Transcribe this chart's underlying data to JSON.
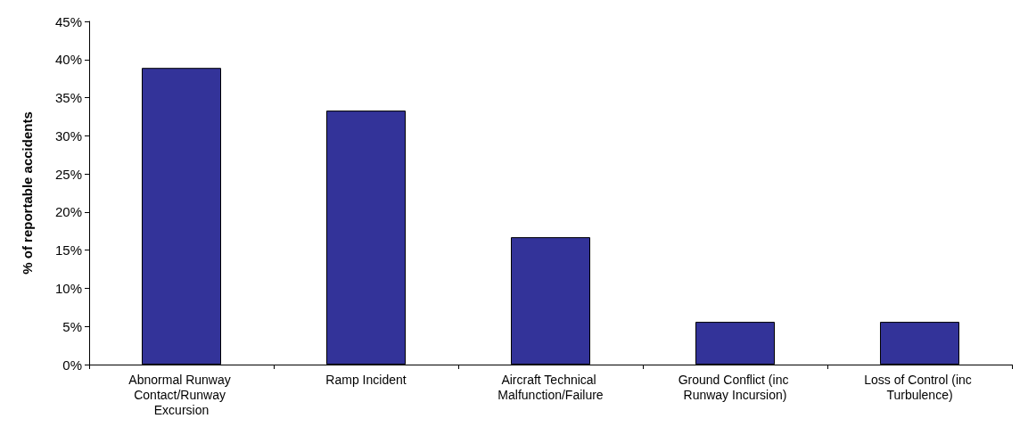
{
  "chart_data": {
    "type": "bar",
    "ylabel": "% of reportable accidents",
    "categories": [
      "Abnormal Runway Contact/Runway Excursion",
      "Ramp Incident",
      "Aircraft Technical Malfunction/Failure",
      "Ground Conflict (inc Runway Incursion)",
      "Loss of Control (inc Turbulence)"
    ],
    "values": [
      38.9,
      33.3,
      16.7,
      5.6,
      5.6
    ],
    "color": "#333399",
    "ylim": [
      0,
      45
    ],
    "yticks": [
      {
        "value": 0,
        "label": "0%"
      },
      {
        "value": 5,
        "label": "5%"
      },
      {
        "value": 10,
        "label": "10%"
      },
      {
        "value": 15,
        "label": "15%"
      },
      {
        "value": 20,
        "label": "20%"
      },
      {
        "value": 25,
        "label": "25%"
      },
      {
        "value": 30,
        "label": "30%"
      },
      {
        "value": 35,
        "label": "35%"
      },
      {
        "value": 40,
        "label": "40%"
      },
      {
        "value": 45,
        "label": "45%"
      }
    ],
    "grid": false
  }
}
